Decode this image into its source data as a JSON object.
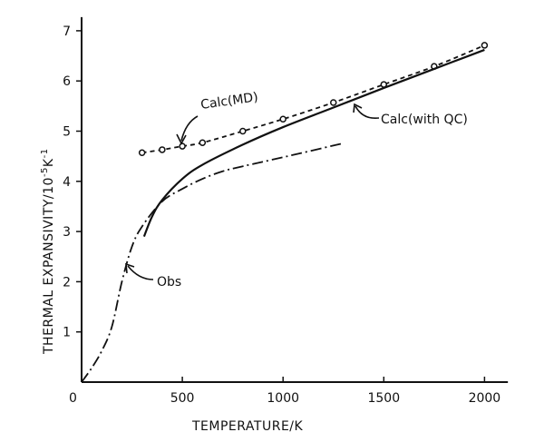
{
  "chart_data": {
    "type": "line",
    "title": "",
    "xlabel": "TEMPERATURE/K",
    "ylabel": "THERMAL EXPANSIVITY/10",
    "ylabel_exp": "-5",
    "ylabel_unit": "K",
    "ylabel_unit_exp": "-1",
    "xlim": [
      0,
      2080
    ],
    "ylim": [
      0,
      7.2
    ],
    "xticks": [
      0,
      500,
      1000,
      1500,
      2000
    ],
    "xtick_labels": [
      "0",
      "500",
      "1000",
      "1500",
      "2000"
    ],
    "yticks": [
      1,
      2,
      3,
      4,
      5,
      6,
      7
    ],
    "ytick_labels": [
      "1",
      "2",
      "3",
      "4",
      "5",
      "6",
      "7"
    ],
    "grid": false,
    "series": [
      {
        "name": "Calc(MD)",
        "style": "dashed-markers",
        "x": [
          300,
          400,
          500,
          600,
          800,
          1000,
          1250,
          1500,
          1750,
          2000
        ],
        "y": [
          4.57,
          4.63,
          4.7,
          4.77,
          5.0,
          5.24,
          5.57,
          5.93,
          6.29,
          6.71
        ]
      },
      {
        "name": "Calc(with QC)",
        "style": "solid",
        "x": [
          310,
          350,
          400,
          500,
          600,
          800,
          1000,
          1250,
          1500,
          1750,
          2000
        ],
        "y": [
          2.9,
          3.3,
          3.63,
          4.05,
          4.33,
          4.73,
          5.08,
          5.47,
          5.86,
          6.24,
          6.62
        ]
      },
      {
        "name": "Obs",
        "style": "dash-dot",
        "x": [
          0,
          50,
          100,
          150,
          200,
          250,
          300,
          400,
          500,
          600,
          700,
          800,
          1000,
          1300
        ],
        "y": [
          0,
          0.28,
          0.62,
          1.1,
          2.0,
          2.7,
          3.1,
          3.6,
          3.85,
          4.05,
          4.2,
          4.3,
          4.48,
          4.76
        ]
      }
    ],
    "annotations": {
      "md": "Calc(MD)",
      "qc": "Calc(with QC)",
      "obs": "Obs"
    }
  }
}
